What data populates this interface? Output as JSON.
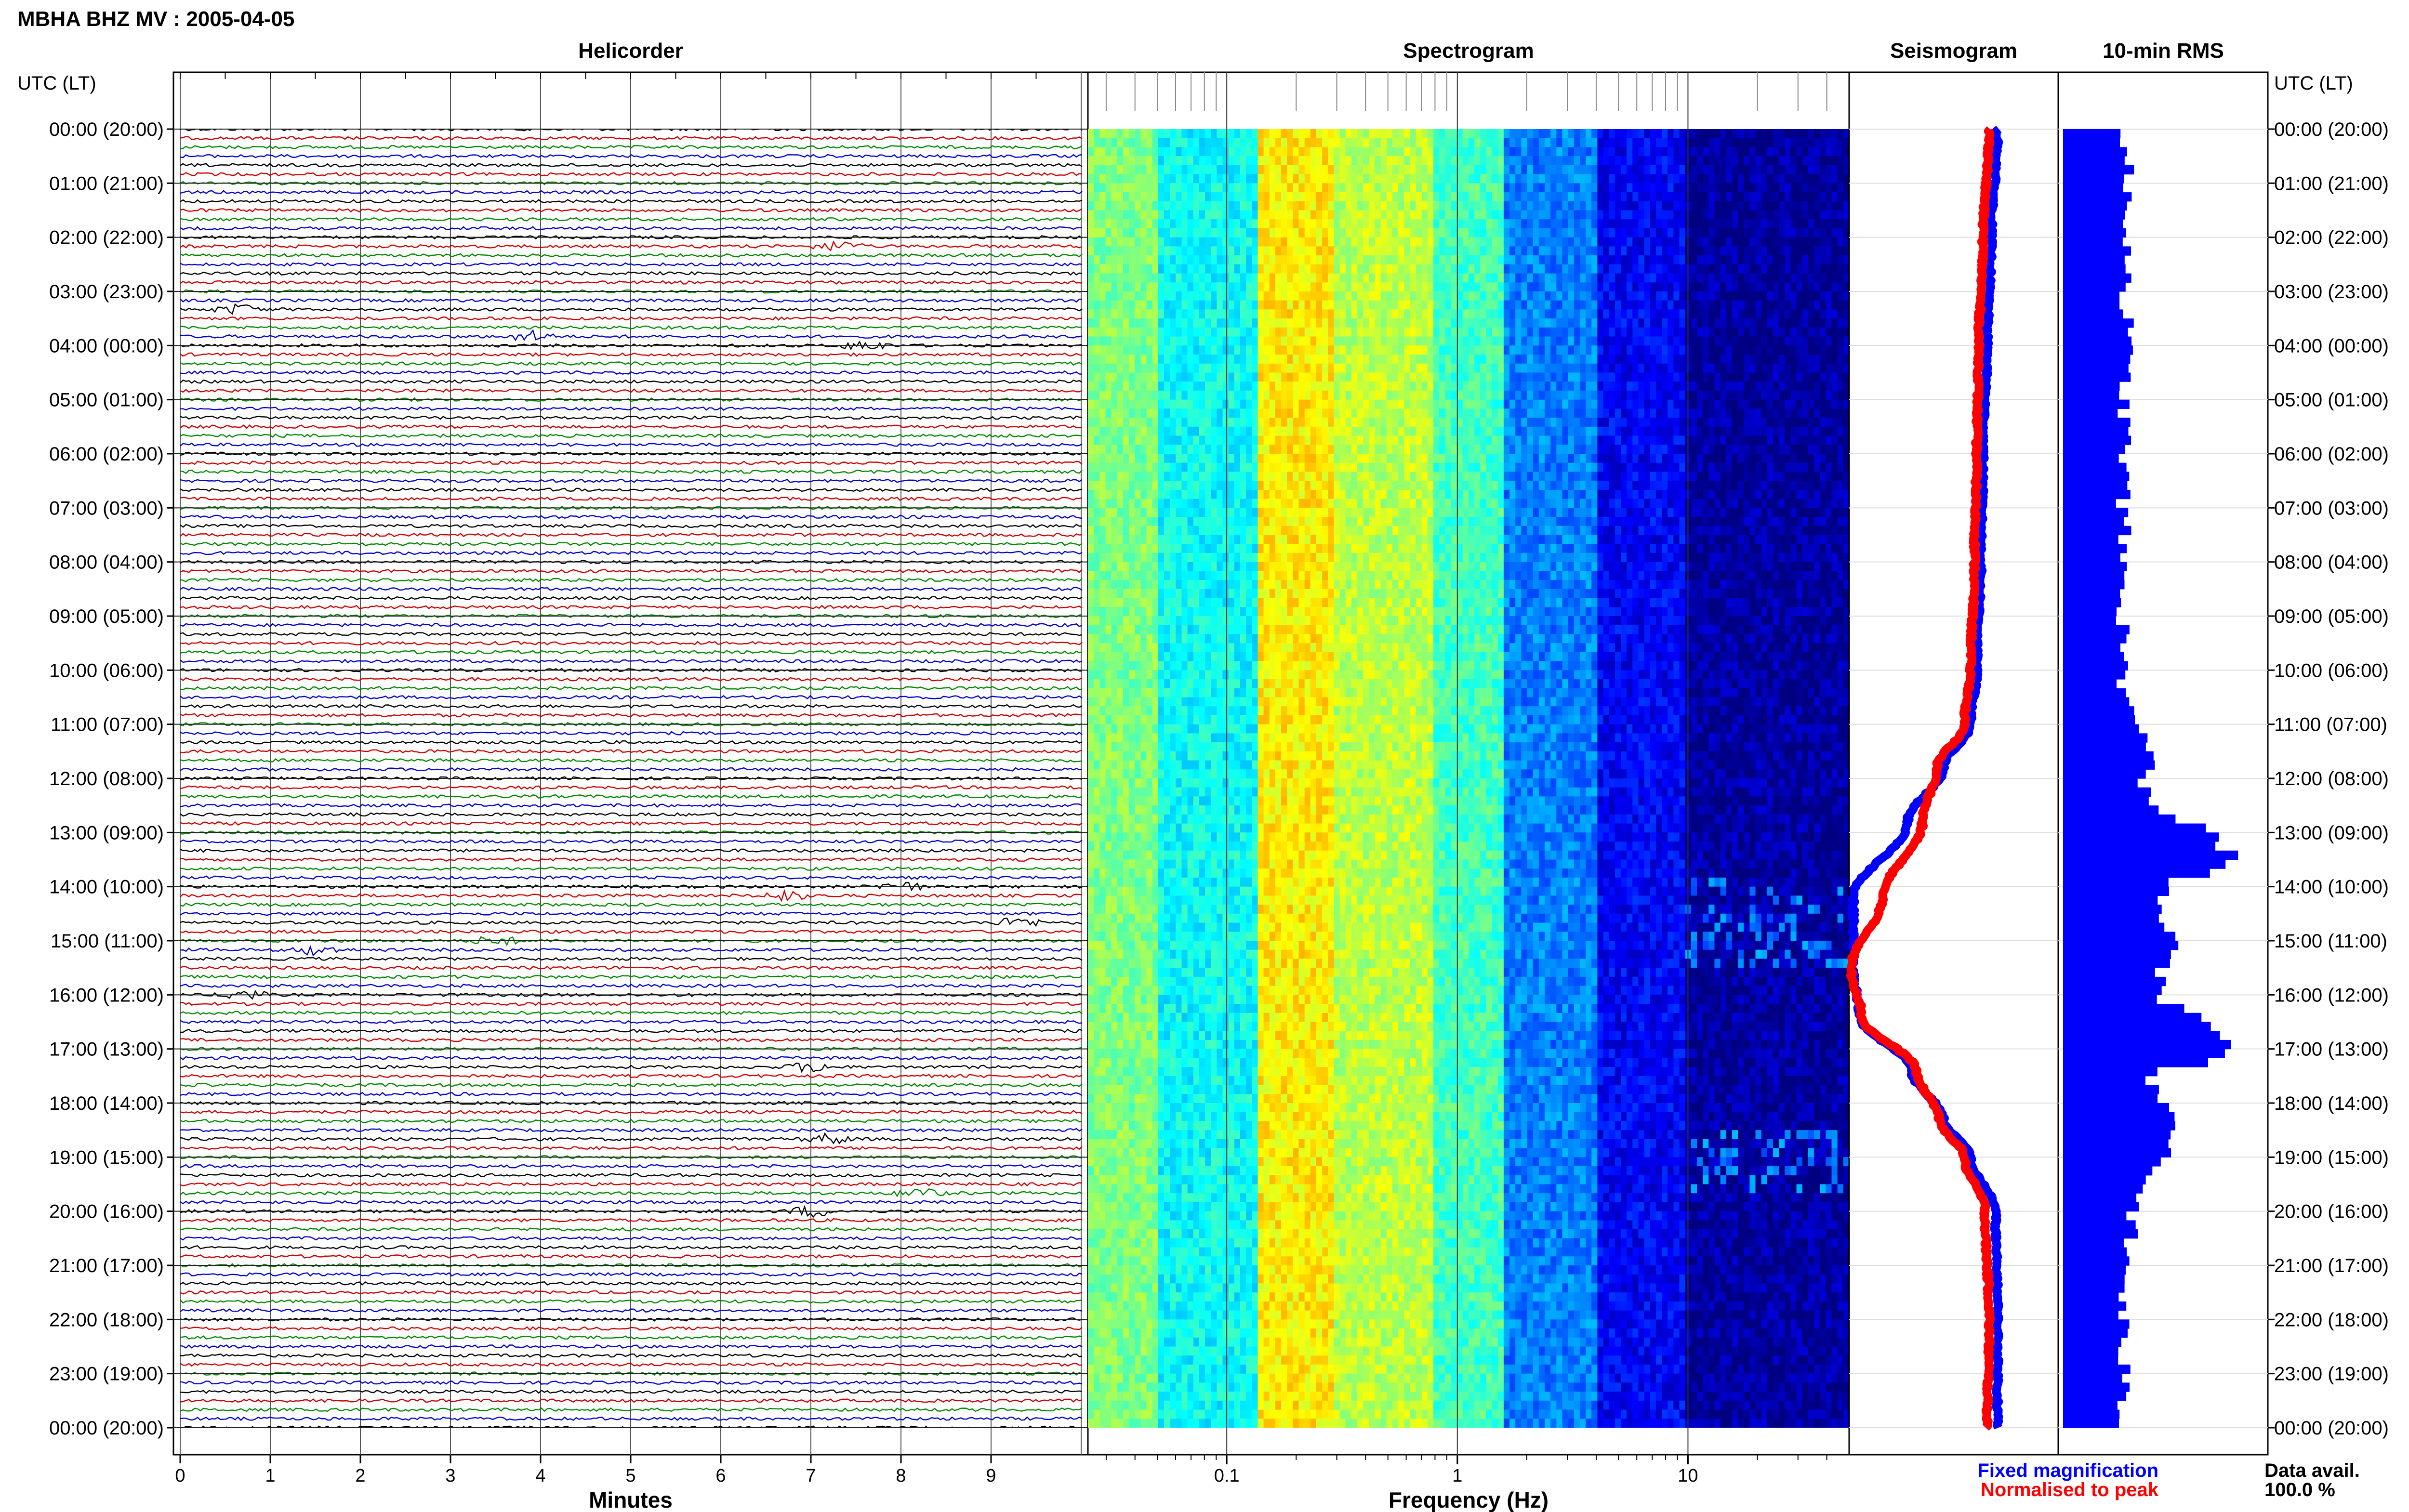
{
  "title": "MBHA BHZ MV : 2005-04-05",
  "panels": {
    "helicorder": "Helicorder",
    "spectrogram": "Spectrogram",
    "seismogram": "Seismogram",
    "rms": "10-min RMS"
  },
  "time_axis_label": "UTC (LT)",
  "footer": {
    "data_avail_label": "Data avail.",
    "data_avail_value": "100.0 %"
  },
  "colors": {
    "trace_cycle": [
      "#000000",
      "#cc0000",
      "#008800",
      "#0000cc"
    ],
    "fixed": "#0000ff",
    "normalised": "#ff0000",
    "rms_bar": "#0000ff"
  },
  "chart_data": [
    {
      "type": "line",
      "name": "helicorder",
      "title": "Helicorder",
      "xlabel": "Minutes",
      "x_ticks": [
        "0",
        "1",
        "2",
        "3",
        "4",
        "5",
        "6",
        "7",
        "8",
        "9"
      ],
      "xlim": [
        0,
        10
      ],
      "y_ticks": [
        "00:00 (20:00)",
        "01:00 (21:00)",
        "02:00 (22:00)",
        "03:00 (23:00)",
        "04:00 (00:00)",
        "05:00 (01:00)",
        "06:00 (02:00)",
        "07:00 (03:00)",
        "08:00 (04:00)",
        "09:00 (05:00)",
        "10:00 (06:00)",
        "11:00 (07:00)",
        "12:00 (08:00)",
        "13:00 (09:00)",
        "14:00 (10:00)",
        "15:00 (11:00)",
        "16:00 (12:00)",
        "17:00 (13:00)",
        "18:00 (14:00)",
        "19:00 (15:00)",
        "20:00 (16:00)",
        "21:00 (17:00)",
        "22:00 (18:00)",
        "23:00 (19:00)",
        "00:00 (20:00)"
      ],
      "ylim_hours": [
        0,
        24
      ],
      "lines_per_hour": 6,
      "events": [
        {
          "hour": 2.1,
          "minute": 7.3
        },
        {
          "hour": 3.35,
          "minute": 0.65
        },
        {
          "hour": 3.8,
          "minute": 3.9
        },
        {
          "hour": 4.0,
          "minute": 7.6
        },
        {
          "hour": 14.0,
          "minute": 8.0
        },
        {
          "hour": 14.1,
          "minute": 6.7
        },
        {
          "hour": 14.7,
          "minute": 9.3
        },
        {
          "hour": 15.0,
          "minute": 3.5
        },
        {
          "hour": 15.1,
          "minute": 1.5
        },
        {
          "hour": 16.0,
          "minute": 0.7
        },
        {
          "hour": 17.3,
          "minute": 7.0
        },
        {
          "hour": 18.7,
          "minute": 7.2
        },
        {
          "hour": 19.7,
          "minute": 8.2
        },
        {
          "hour": 20.0,
          "minute": 7.0
        }
      ]
    },
    {
      "type": "heatmap",
      "name": "spectrogram",
      "title": "Spectrogram",
      "xlabel": "Frequency (Hz)",
      "x_scale": "log",
      "xlim": [
        0.025,
        50
      ],
      "x_ticks": [
        0.1,
        1,
        10
      ],
      "y": "hour of day 0-24",
      "bands_hz": [
        {
          "from": 0.025,
          "to": 0.05,
          "level": 0.5
        },
        {
          "from": 0.05,
          "to": 0.14,
          "level": 0.38
        },
        {
          "from": 0.14,
          "to": 0.3,
          "level": 0.64
        },
        {
          "from": 0.3,
          "to": 0.8,
          "level": 0.56
        },
        {
          "from": 0.8,
          "to": 1.6,
          "level": 0.44
        },
        {
          "from": 1.6,
          "to": 4,
          "level": 0.25
        },
        {
          "from": 4,
          "to": 10,
          "level": 0.12
        },
        {
          "from": 10,
          "to": 50,
          "level": 0.03
        }
      ],
      "tremor_episodes_hours": [
        [
          13.8,
          15.4
        ],
        [
          18.5,
          19.6
        ]
      ]
    },
    {
      "type": "line",
      "name": "seismogram",
      "title": "Seismogram",
      "series": [
        {
          "name": "Fixed magnification",
          "hours": [
            0,
            2,
            4,
            6,
            8,
            10,
            11,
            11.8,
            12.8,
            14.2,
            15.5,
            16.4,
            17.4,
            18.3,
            19.0,
            20,
            22,
            24
          ],
          "values": [
            0.71,
            0.68,
            0.66,
            0.64,
            0.63,
            0.61,
            0.58,
            0.45,
            0.28,
            0.02,
            0.02,
            0.05,
            0.3,
            0.45,
            0.58,
            0.7,
            0.71,
            0.71
          ]
        },
        {
          "name": "Normalised to peak",
          "hours": [
            0,
            2,
            4,
            6,
            8,
            10,
            11,
            11.8,
            12.8,
            14.2,
            15.5,
            16.4,
            17.4,
            18.3,
            19.0,
            20,
            22,
            24
          ],
          "values": [
            0.67,
            0.64,
            0.62,
            0.61,
            0.6,
            0.58,
            0.55,
            0.42,
            0.35,
            0.16,
            0.01,
            0.06,
            0.32,
            0.43,
            0.55,
            0.65,
            0.67,
            0.66
          ]
        }
      ]
    },
    {
      "type": "bar",
      "name": "rms",
      "title": "10-min RMS",
      "orientation": "horizontal",
      "bin_minutes": 10,
      "anchors_hour": [
        0,
        1,
        2,
        3,
        5,
        8,
        10,
        11,
        11.5,
        12,
        12.5,
        13,
        13.5,
        14,
        14.5,
        15,
        15.5,
        16,
        16.5,
        17,
        17.5,
        18,
        18.5,
        19,
        19.5,
        20,
        21,
        22,
        23,
        24
      ],
      "anchors_value": [
        0.3,
        0.32,
        0.33,
        0.32,
        0.31,
        0.3,
        0.3,
        0.35,
        0.45,
        0.4,
        0.47,
        0.75,
        0.85,
        0.5,
        0.45,
        0.6,
        0.5,
        0.45,
        0.75,
        0.85,
        0.45,
        0.5,
        0.55,
        0.5,
        0.4,
        0.35,
        0.31,
        0.3,
        0.3,
        0.3
      ]
    }
  ],
  "legend": {
    "fixed_label": "Fixed magnification",
    "normalised_label": "Normalised to peak"
  }
}
